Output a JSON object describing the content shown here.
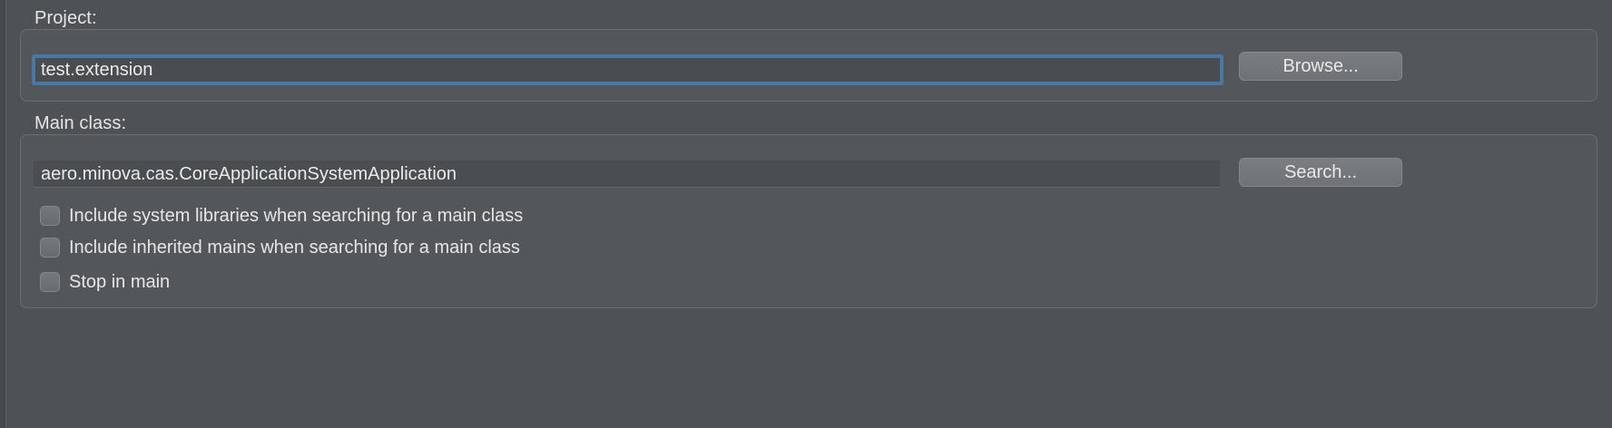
{
  "project": {
    "label": "Project:",
    "value": "test.extension",
    "browse_label": "Browse..."
  },
  "main_class": {
    "label": "Main class:",
    "value": "aero.minova.cas.CoreApplicationSystemApplication",
    "search_label": "Search...",
    "options": [
      {
        "label": "Include system libraries when searching for a main class",
        "checked": false
      },
      {
        "label": "Include inherited mains when searching for a main class",
        "checked": false
      },
      {
        "label": "Stop in main",
        "checked": false
      }
    ]
  }
}
